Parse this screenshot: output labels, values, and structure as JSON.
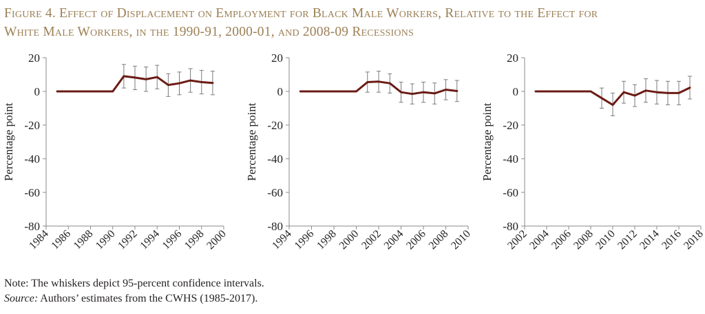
{
  "figure": {
    "title_line1": "Figure 4. Effect of Displacement on Employment for Black Male Workers, Relative to the Effect for",
    "title_line2": "White Male Workers, in the 1990-91, 2000-01, and 2008-09 Recessions",
    "note": "Note: The whiskers depict 95-percent confidence intervals.",
    "source_label": "Source:",
    "source_text": " Authors’ estimates from the CWHS (1985-2017)."
  },
  "colors": {
    "title": "#9c8055",
    "line": "#6b1a14",
    "axis": "#8a8a8a",
    "whisker": "#7a7a7a"
  },
  "chart_data": [
    {
      "type": "line",
      "title": "",
      "ylabel": "Percentage point",
      "ylim": [
        -80,
        20
      ],
      "yticks": [
        20,
        0,
        -20,
        -40,
        -60,
        -80
      ],
      "xlim": [
        1984,
        2000
      ],
      "xticks": [
        1984,
        1986,
        1988,
        1990,
        1992,
        1994,
        1996,
        1998,
        2000
      ],
      "x": [
        1985,
        1986,
        1987,
        1988,
        1989,
        1990,
        1991,
        1992,
        1993,
        1994,
        1995,
        1996,
        1997,
        1998,
        1999
      ],
      "y": [
        0,
        0,
        0,
        0,
        0,
        0,
        9,
        8.2,
        7.2,
        8.5,
        3.8,
        4.8,
        6.5,
        5.5,
        5
      ],
      "lower": [
        null,
        null,
        null,
        null,
        null,
        null,
        2,
        1,
        0,
        1.5,
        -3,
        -2,
        -0.5,
        -1.5,
        -2
      ],
      "upper": [
        null,
        null,
        null,
        null,
        null,
        null,
        16,
        15,
        14.5,
        15.5,
        10.5,
        11.5,
        13.5,
        12.5,
        12
      ]
    },
    {
      "type": "line",
      "title": "",
      "ylabel": "Percentage point",
      "ylim": [
        -80,
        20
      ],
      "yticks": [
        20,
        0,
        -20,
        -40,
        -60,
        -80
      ],
      "xlim": [
        1994,
        2010
      ],
      "xticks": [
        1994,
        1996,
        1998,
        2000,
        2002,
        2004,
        2006,
        2008,
        2010
      ],
      "x": [
        1995,
        1996,
        1997,
        1998,
        1999,
        2000,
        2001,
        2002,
        2003,
        2004,
        2005,
        2006,
        2007,
        2008,
        2009
      ],
      "y": [
        0,
        0,
        0,
        0,
        0,
        0,
        5.5,
        5.8,
        4.8,
        -0.5,
        -1.5,
        -0.5,
        -1.2,
        1,
        0.2
      ],
      "lower": [
        null,
        null,
        null,
        null,
        null,
        null,
        -0.5,
        -0.5,
        -1,
        -6.5,
        -7.5,
        -6.5,
        -7.5,
        -5,
        -6
      ],
      "upper": [
        null,
        null,
        null,
        null,
        null,
        null,
        11.5,
        12,
        10.5,
        5.5,
        4.5,
        5.5,
        5,
        7,
        6.5
      ]
    },
    {
      "type": "line",
      "title": "",
      "ylabel": "Percentage point",
      "ylim": [
        -80,
        20
      ],
      "yticks": [
        20,
        0,
        -20,
        -40,
        -60,
        -80
      ],
      "xlim": [
        2002,
        2018
      ],
      "xticks": [
        2002,
        2004,
        2006,
        2008,
        2010,
        2012,
        2014,
        2016,
        2018
      ],
      "x": [
        2003,
        2004,
        2005,
        2006,
        2007,
        2008,
        2009,
        2010,
        2011,
        2012,
        2013,
        2014,
        2015,
        2016,
        2017
      ],
      "y": [
        0,
        0,
        0,
        0,
        0,
        0,
        -4,
        -8,
        -0.5,
        -2.5,
        0.5,
        -0.5,
        -1,
        -1,
        2.2
      ],
      "lower": [
        null,
        null,
        null,
        null,
        null,
        null,
        -10,
        -14.5,
        -7,
        -9,
        -6.5,
        -7.5,
        -8,
        -8,
        -4.5
      ],
      "upper": [
        null,
        null,
        null,
        null,
        null,
        null,
        2,
        -1,
        6,
        4,
        7.5,
        6.5,
        6,
        6,
        9
      ]
    }
  ]
}
